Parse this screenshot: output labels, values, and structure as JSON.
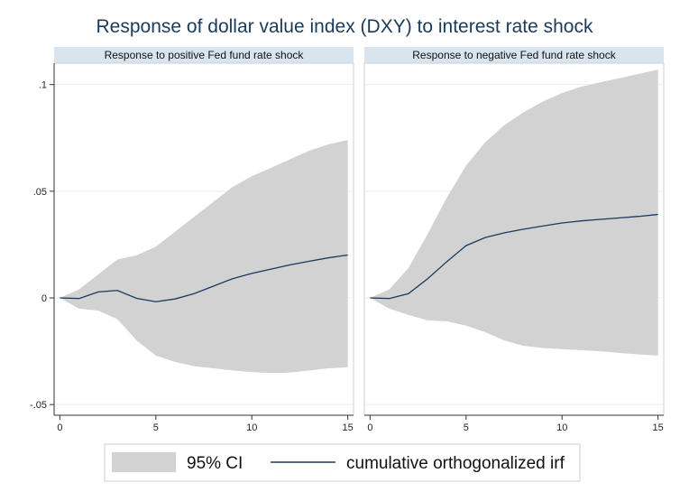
{
  "title": "Response of dollar value index (DXY) to interest rate shock",
  "chart_data": {
    "type": "area",
    "y_axis": {
      "ylim": [
        -0.055,
        0.11
      ],
      "ticks": [
        -0.05,
        0,
        0.05,
        0.1
      ],
      "tick_labels": [
        "-.05",
        "0",
        ".05",
        ".1"
      ]
    },
    "x_axis": {
      "xlim": [
        -0.3,
        15.3
      ],
      "ticks": [
        0,
        5,
        10,
        15
      ],
      "tick_labels": [
        "0",
        "5",
        "10",
        "15"
      ]
    },
    "grid": true,
    "legend_position": "bottom",
    "legend": {
      "ci_label": "95% CI",
      "irf_label": "cumulative orthogonalized irf"
    },
    "colors": {
      "ci_fill": "#d2d2d2",
      "irf_line": "#1a3a5e",
      "strip_bg": "#d9e5ee"
    },
    "panels": [
      {
        "strip": "Response to positive Fed fund rate shock",
        "x": [
          0,
          1,
          2,
          3,
          4,
          5,
          6,
          7,
          8,
          9,
          10,
          11,
          12,
          13,
          14,
          15
        ],
        "irf": [
          0,
          -0.0003,
          0.0028,
          0.0035,
          -0.0002,
          -0.0018,
          -0.0005,
          0.002,
          0.0055,
          0.009,
          0.0115,
          0.0135,
          0.0155,
          0.0172,
          0.0188,
          0.0201
        ],
        "upper": [
          0,
          0.004,
          0.011,
          0.018,
          0.02,
          0.024,
          0.031,
          0.038,
          0.045,
          0.052,
          0.057,
          0.061,
          0.065,
          0.069,
          0.072,
          0.074
        ],
        "lower": [
          0,
          -0.005,
          -0.006,
          -0.01,
          -0.02,
          -0.027,
          -0.03,
          -0.032,
          -0.033,
          -0.034,
          -0.0348,
          -0.0352,
          -0.035,
          -0.034,
          -0.033,
          -0.0325
        ]
      },
      {
        "strip": "Response to negative Fed fund rate shock",
        "x": [
          0,
          1,
          2,
          3,
          4,
          5,
          6,
          7,
          8,
          9,
          10,
          11,
          12,
          13,
          14,
          15
        ],
        "irf": [
          0,
          -0.0003,
          0.002,
          0.009,
          0.017,
          0.0245,
          0.0283,
          0.0305,
          0.0322,
          0.0337,
          0.0351,
          0.0361,
          0.0368,
          0.0375,
          0.0382,
          0.0391
        ],
        "upper": [
          0,
          0.004,
          0.014,
          0.03,
          0.047,
          0.062,
          0.073,
          0.081,
          0.087,
          0.092,
          0.096,
          0.099,
          0.101,
          0.103,
          0.105,
          0.107
        ],
        "lower": [
          0,
          -0.005,
          -0.008,
          -0.0105,
          -0.011,
          -0.013,
          -0.016,
          -0.02,
          -0.0225,
          -0.0235,
          -0.024,
          -0.0245,
          -0.025,
          -0.0258,
          -0.0265,
          -0.027
        ]
      }
    ]
  }
}
